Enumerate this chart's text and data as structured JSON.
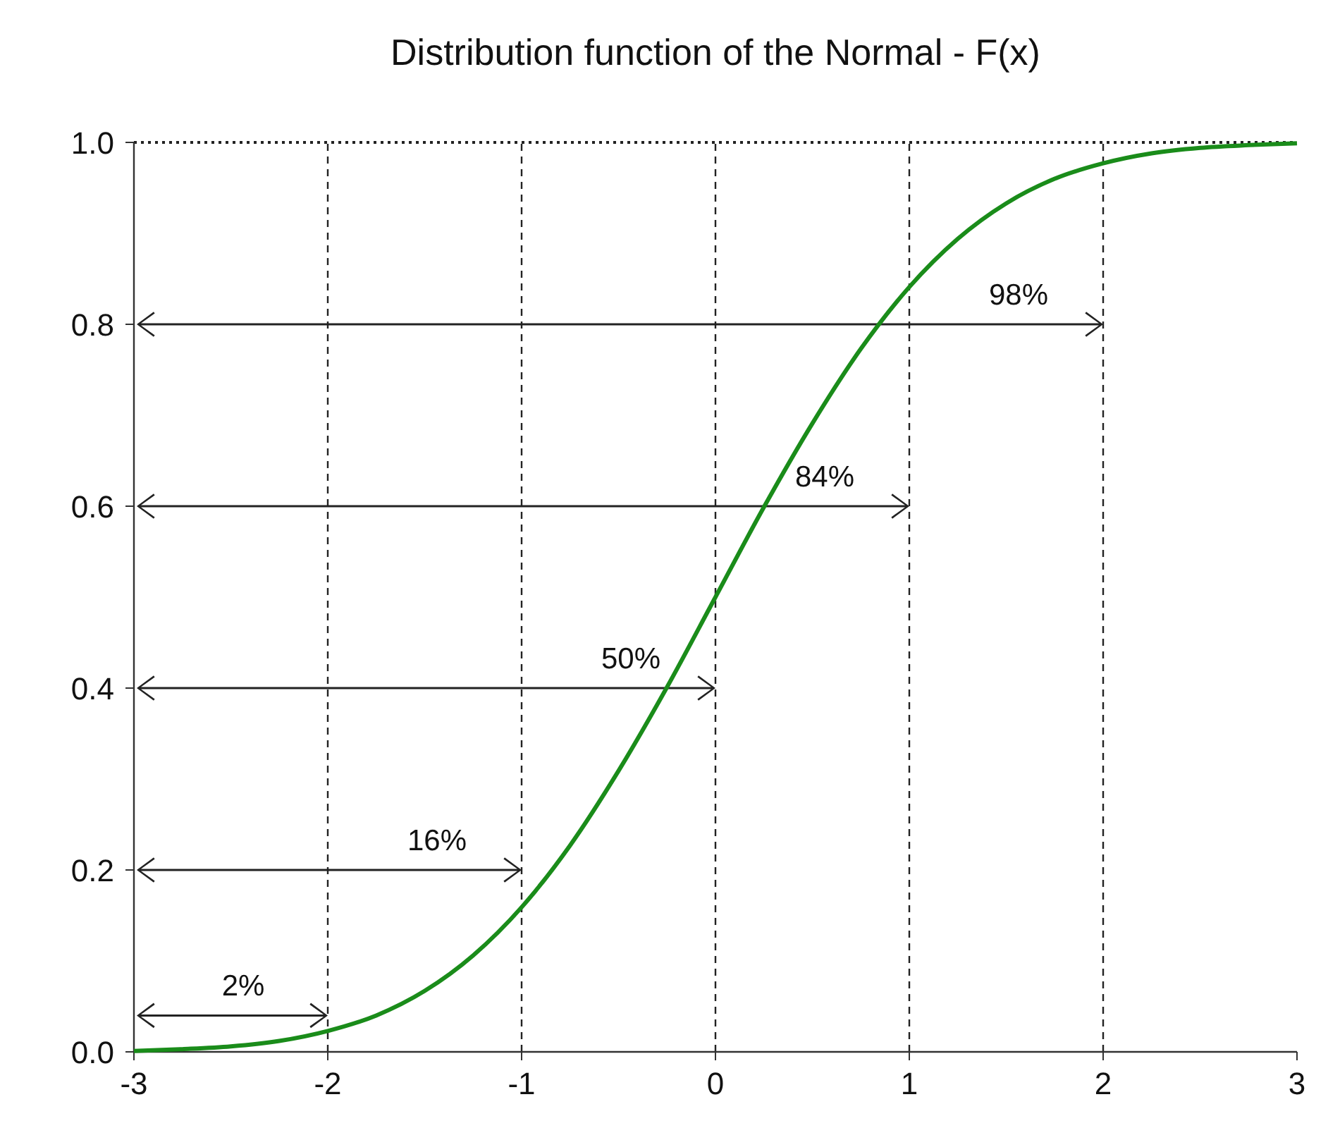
{
  "chart_data": {
    "type": "line",
    "title": "Distribution function of the Normal - F(x)",
    "x": [
      -3,
      -2.75,
      -2.5,
      -2.25,
      -2,
      -1.75,
      -1.5,
      -1.25,
      -1,
      -0.75,
      -0.5,
      -0.25,
      0,
      0.25,
      0.5,
      0.75,
      1,
      1.25,
      1.5,
      1.75,
      2,
      2.25,
      2.5,
      2.75,
      3
    ],
    "series": [
      {
        "color": "#1a8c1a",
        "values": [
          0.001,
          0.003,
          0.006,
          0.012,
          0.023,
          0.04,
          0.067,
          0.106,
          0.159,
          0.227,
          0.309,
          0.401,
          0.5,
          0.599,
          0.691,
          0.773,
          0.841,
          0.894,
          0.933,
          0.96,
          0.977,
          0.988,
          0.994,
          0.997,
          0.999
        ]
      }
    ],
    "xlim": [
      -3,
      3
    ],
    "xticks": [
      -3,
      -2,
      -1,
      0,
      1,
      2,
      3
    ],
    "ylim": [
      0,
      1
    ],
    "yticks": [
      {
        "value": 0,
        "label": "0.0"
      },
      {
        "value": 0.2,
        "label": "0.2"
      },
      {
        "value": 0.4,
        "label": "0.4"
      },
      {
        "value": 0.6,
        "label": "0.6"
      },
      {
        "value": 0.8,
        "label": "0.8"
      },
      {
        "value": 1,
        "label": "1.0"
      }
    ],
    "grid": false,
    "marker": "none",
    "line_style": "solid",
    "ref_lines": [
      {
        "axis": "x",
        "value": -2,
        "line_style": "dashed"
      },
      {
        "axis": "x",
        "value": -1,
        "line_style": "dashed"
      },
      {
        "axis": "x",
        "value": 0,
        "line_style": "dashed"
      },
      {
        "axis": "x",
        "value": 1,
        "line_style": "dashed"
      },
      {
        "axis": "x",
        "value": 2,
        "line_style": "dashed"
      },
      {
        "axis": "y",
        "value": 1,
        "line_style": "dotted"
      }
    ],
    "annotations": [
      {
        "text": "2%",
        "x": -2,
        "y": 0.04
      },
      {
        "text": "16%",
        "x": -1,
        "y": 0.2
      },
      {
        "text": "50%",
        "x": 0,
        "y": 0.4
      },
      {
        "text": "84%",
        "x": 1,
        "y": 0.6
      },
      {
        "text": "98%",
        "x": 2,
        "y": 0.8
      }
    ]
  }
}
